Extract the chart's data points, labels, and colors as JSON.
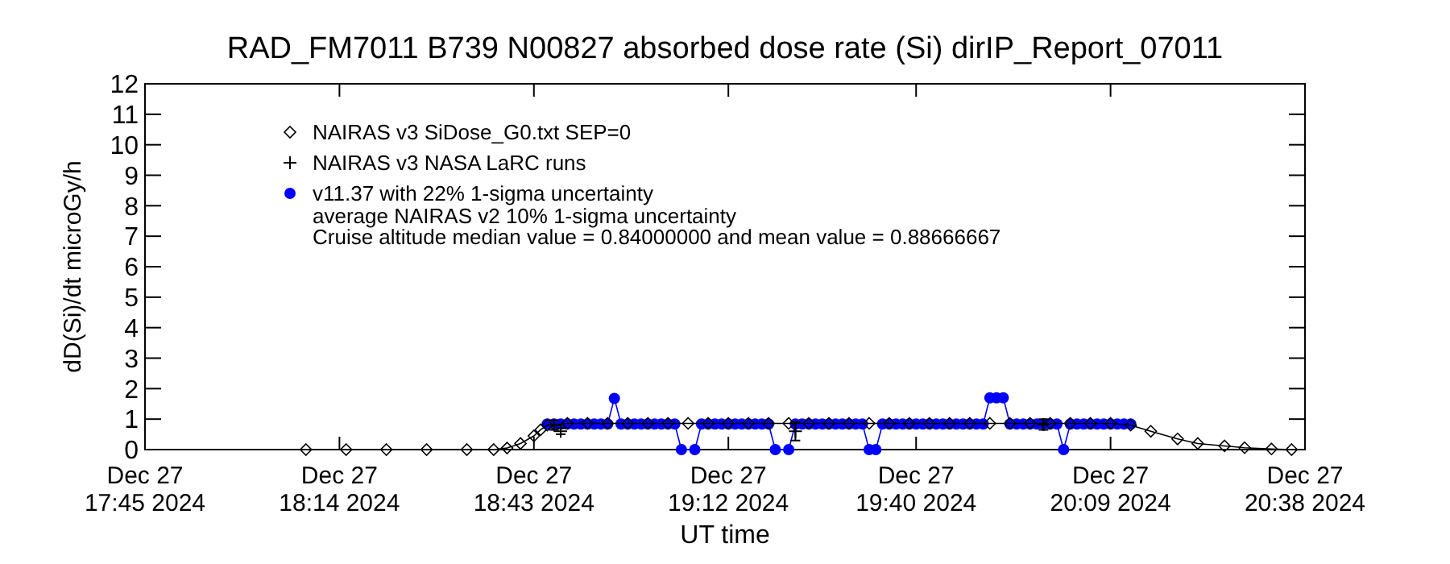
{
  "chart_data": {
    "type": "line",
    "title": "RAD_FM7011  B739 N00827 absorbed dose rate (Si) dirIP_Report_07011",
    "xlabel": "UT time",
    "ylabel": "dD(Si)/dt microGy/h",
    "xlim": [
      "2024-12-27T17:45",
      "2024-12-27T20:38"
    ],
    "ylim": [
      0,
      12
    ],
    "xticks": [
      {
        "value": "2024-12-27T17:45",
        "label": "Dec 27\n17:45 2024"
      },
      {
        "value": "2024-12-27T18:14",
        "label": "Dec 27\n18:14 2024"
      },
      {
        "value": "2024-12-27T18:43",
        "label": "Dec 27\n18:43 2024"
      },
      {
        "value": "2024-12-27T19:12",
        "label": "Dec 27\n19:12 2024"
      },
      {
        "value": "2024-12-27T19:40",
        "label": "Dec 27\n19:40 2024"
      },
      {
        "value": "2024-12-27T20:09",
        "label": "Dec 27\n20:09 2024"
      },
      {
        "value": "2024-12-27T20:38",
        "label": "Dec 27\n20:38 2024"
      }
    ],
    "yticks": [
      0,
      1,
      2,
      3,
      4,
      5,
      6,
      7,
      8,
      9,
      10,
      11,
      12
    ],
    "grid": false,
    "legend": "top left",
    "annotations": [
      "average NAIRAS v2 10% 1-sigma uncertainty",
      "Cruise altitude median value = 0.84000000 and mean value = 0.88666667"
    ],
    "series": [
      {
        "name": "NAIRAS v3 SiDose_G0.txt SEP=0",
        "color": "#000000",
        "marker": "diamond",
        "x": [
          "2024-12-27T18:09",
          "2024-12-27T18:15",
          "2024-12-27T18:21",
          "2024-12-27T18:27",
          "2024-12-27T18:33",
          "2024-12-27T18:37",
          "2024-12-27T18:39",
          "2024-12-27T18:41",
          "2024-12-27T18:43",
          "2024-12-27T18:44",
          "2024-12-27T18:45",
          "2024-12-27T18:48",
          "2024-12-27T18:51",
          "2024-12-27T18:54",
          "2024-12-27T18:57",
          "2024-12-27T19:00",
          "2024-12-27T19:03",
          "2024-12-27T19:06",
          "2024-12-27T19:09",
          "2024-12-27T19:12",
          "2024-12-27T19:15",
          "2024-12-27T19:18",
          "2024-12-27T19:21",
          "2024-12-27T19:24",
          "2024-12-27T19:27",
          "2024-12-27T19:30",
          "2024-12-27T19:33",
          "2024-12-27T19:36",
          "2024-12-27T19:39",
          "2024-12-27T19:42",
          "2024-12-27T19:45",
          "2024-12-27T19:48",
          "2024-12-27T19:51",
          "2024-12-27T19:54",
          "2024-12-27T19:57",
          "2024-12-27T20:00",
          "2024-12-27T20:03",
          "2024-12-27T20:06",
          "2024-12-27T20:09",
          "2024-12-27T20:12",
          "2024-12-27T20:15",
          "2024-12-27T20:19",
          "2024-12-27T20:22",
          "2024-12-27T20:26",
          "2024-12-27T20:29",
          "2024-12-27T20:33",
          "2024-12-27T20:36"
        ],
        "values": [
          0,
          0,
          0,
          0,
          0,
          0,
          0.05,
          0.2,
          0.45,
          0.65,
          0.8,
          0.86,
          0.86,
          0.86,
          0.86,
          0.86,
          0.86,
          0.86,
          0.86,
          0.86,
          0.86,
          0.86,
          0.86,
          0.86,
          0.86,
          0.86,
          0.86,
          0.86,
          0.86,
          0.86,
          0.86,
          0.86,
          0.86,
          0.86,
          0.86,
          0.86,
          0.86,
          0.86,
          0.86,
          0.8,
          0.6,
          0.35,
          0.2,
          0.12,
          0.06,
          0.02,
          0
        ]
      },
      {
        "name": "NAIRAS v3 NASA LaRC runs",
        "color": "#000000",
        "marker": "cross",
        "type": "scatter",
        "x": [
          "2024-12-27T18:46",
          "2024-12-27T18:47",
          "2024-12-27T19:22",
          "2024-12-27T19:59"
        ],
        "values": [
          0.8,
          0.6,
          0.6,
          0.82
        ],
        "errors": [
          [
            0.65,
            0.96
          ],
          [
            0.5,
            0.7
          ],
          [
            0.3,
            0.9
          ],
          [
            0.65,
            1.0
          ]
        ]
      },
      {
        "name": "v11.37 with 22% 1-sigma uncertainty",
        "color": "#0000ff",
        "marker": "circle",
        "x": [
          "2024-12-27T18:45",
          "2024-12-27T18:46",
          "2024-12-27T18:47",
          "2024-12-27T18:48",
          "2024-12-27T18:49",
          "2024-12-27T18:50",
          "2024-12-27T18:51",
          "2024-12-27T18:52",
          "2024-12-27T18:53",
          "2024-12-27T18:54",
          "2024-12-27T18:55",
          "2024-12-27T18:56",
          "2024-12-27T18:57",
          "2024-12-27T18:58",
          "2024-12-27T18:59",
          "2024-12-27T19:00",
          "2024-12-27T19:01",
          "2024-12-27T19:02",
          "2024-12-27T19:03",
          "2024-12-27T19:04",
          "2024-12-27T19:05",
          "2024-12-27T19:07",
          "2024-12-27T19:08",
          "2024-12-27T19:09",
          "2024-12-27T19:10",
          "2024-12-27T19:11",
          "2024-12-27T19:12",
          "2024-12-27T19:13",
          "2024-12-27T19:14",
          "2024-12-27T19:15",
          "2024-12-27T19:16",
          "2024-12-27T19:17",
          "2024-12-27T19:18",
          "2024-12-27T19:19",
          "2024-12-27T19:21",
          "2024-12-27T19:22",
          "2024-12-27T19:23",
          "2024-12-27T19:24",
          "2024-12-27T19:25",
          "2024-12-27T19:26",
          "2024-12-27T19:27",
          "2024-12-27T19:28",
          "2024-12-27T19:29",
          "2024-12-27T19:30",
          "2024-12-27T19:31",
          "2024-12-27T19:32",
          "2024-12-27T19:33",
          "2024-12-27T19:34",
          "2024-12-27T19:35",
          "2024-12-27T19:36",
          "2024-12-27T19:37",
          "2024-12-27T19:38",
          "2024-12-27T19:39",
          "2024-12-27T19:40",
          "2024-12-27T19:41",
          "2024-12-27T19:42",
          "2024-12-27T19:43",
          "2024-12-27T19:44",
          "2024-12-27T19:45",
          "2024-12-27T19:46",
          "2024-12-27T19:47",
          "2024-12-27T19:48",
          "2024-12-27T19:49",
          "2024-12-27T19:50",
          "2024-12-27T19:51",
          "2024-12-27T19:52",
          "2024-12-27T19:53",
          "2024-12-27T19:54",
          "2024-12-27T19:55",
          "2024-12-27T19:56",
          "2024-12-27T19:57",
          "2024-12-27T19:58",
          "2024-12-27T19:59",
          "2024-12-27T20:00",
          "2024-12-27T20:01",
          "2024-12-27T20:02",
          "2024-12-27T20:03",
          "2024-12-27T20:04",
          "2024-12-27T20:05",
          "2024-12-27T20:06",
          "2024-12-27T20:07",
          "2024-12-27T20:08",
          "2024-12-27T20:09",
          "2024-12-27T20:10",
          "2024-12-27T20:11",
          "2024-12-27T20:12"
        ],
        "values": [
          0.84,
          0.84,
          0.84,
          0.84,
          0.84,
          0.84,
          0.84,
          0.84,
          0.84,
          0.84,
          1.68,
          0.84,
          0.84,
          0.84,
          0.84,
          0.84,
          0.84,
          0.84,
          0.84,
          0.84,
          0,
          0,
          0.84,
          0.84,
          0.84,
          0.84,
          0.84,
          0.84,
          0.84,
          0.84,
          0.84,
          0.84,
          0.84,
          0,
          0,
          0.84,
          0.84,
          0.84,
          0.84,
          0.84,
          0.84,
          0.84,
          0.84,
          0.84,
          0.84,
          0.84,
          0,
          0,
          0.84,
          0.84,
          0.84,
          0.84,
          0.84,
          0.84,
          0.84,
          0.84,
          0.84,
          0.84,
          0.84,
          0.84,
          0.84,
          0.84,
          0.84,
          0.84,
          1.7,
          1.7,
          1.7,
          0.84,
          0.84,
          0.84,
          0.84,
          0.84,
          0.84,
          0.84,
          0.84,
          0,
          0.84,
          0.84,
          0.84,
          0.84,
          0.84,
          0.84,
          0.84,
          0.84,
          0.84,
          0.84
        ]
      }
    ]
  }
}
